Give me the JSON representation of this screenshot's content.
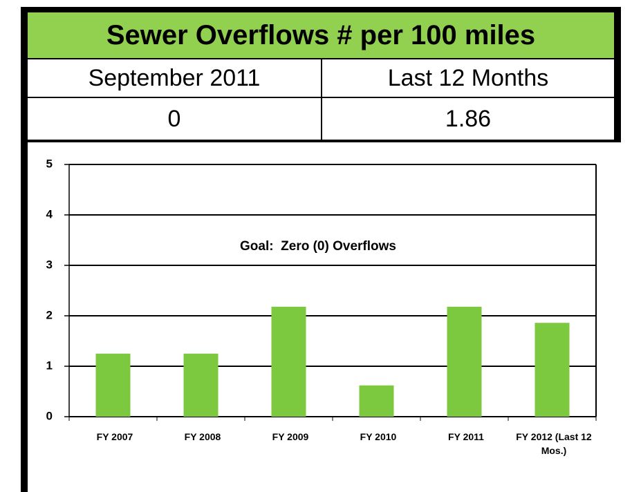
{
  "chart_data": {
    "type": "bar",
    "title": "Sewer Overflows # per 100 miles",
    "annotation": "Goal:  Zero (0) Overflows",
    "categories": [
      "FY 2007",
      "FY 2008",
      "FY 2009",
      "FY 2010",
      "FY 2011",
      "FY 2012 (Last 12 Mos.)"
    ],
    "values": [
      1.25,
      1.25,
      2.18,
      0.62,
      2.18,
      1.86
    ],
    "color": "#7cc83e",
    "ylim": [
      0,
      5
    ],
    "yticks": [
      0,
      1,
      2,
      3,
      4,
      5
    ],
    "grid": true
  },
  "summary": {
    "columns": [
      "September 2011",
      "Last 12 Months"
    ],
    "values": [
      0,
      1.86
    ]
  }
}
